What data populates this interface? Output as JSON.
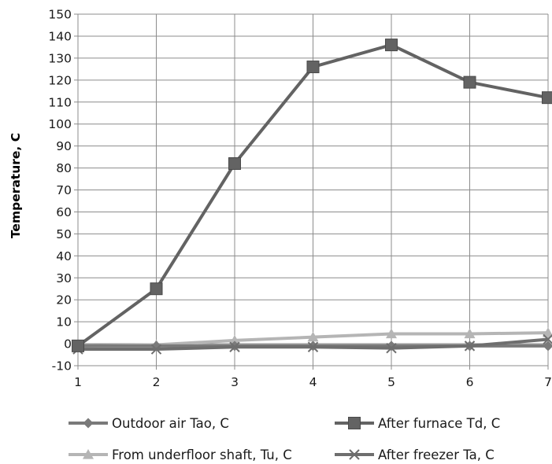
{
  "chart_data": {
    "type": "line",
    "title": "",
    "xlabel": "",
    "ylabel": "Temperature, C",
    "x": [
      1,
      2,
      3,
      4,
      5,
      6,
      7
    ],
    "x_ticks": [
      "1",
      "2",
      "3",
      "4",
      "5",
      "6",
      "7"
    ],
    "xlim": [
      1,
      7
    ],
    "ylim": [
      -10,
      150
    ],
    "y_ticks": [
      "-10",
      "0",
      "10",
      "20",
      "30",
      "40",
      "50",
      "60",
      "70",
      "80",
      "90",
      "100",
      "110",
      "120",
      "130",
      "140",
      "150"
    ],
    "grid": true,
    "legend_position": "bottom",
    "series": [
      {
        "name": "Outdoor air Tao, C",
        "marker": "diamond",
        "color": "#7a7a7a",
        "values": [
          -1,
          -1,
          -1,
          -1,
          -1,
          -1,
          -1
        ]
      },
      {
        "name": "After furnace Td, C",
        "marker": "square",
        "color": "#636363",
        "values": [
          -1,
          25,
          82,
          126,
          136,
          119,
          112
        ]
      },
      {
        "name": "From underfloor shaft, Tu, C",
        "marker": "triangle",
        "color": "#b5b5b5",
        "values": [
          -1,
          -0.5,
          1.5,
          3,
          4.5,
          4.5,
          5
        ]
      },
      {
        "name": "After freezer Ta, C",
        "marker": "x",
        "color": "#6e6e6e",
        "values": [
          -2.5,
          -2.5,
          -1.5,
          -1.5,
          -2,
          -1,
          2
        ]
      }
    ]
  }
}
